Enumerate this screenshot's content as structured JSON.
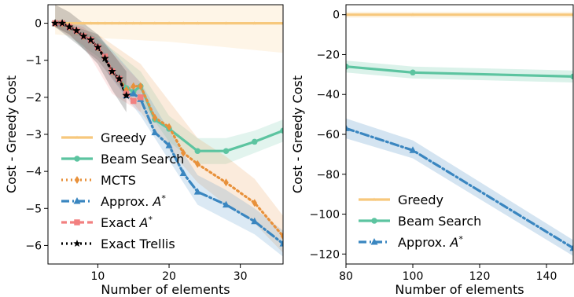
{
  "colors": {
    "greedy": "#f7c87c",
    "beam": "#5cc4a0",
    "mcts": "#e8913b",
    "approx": "#3a86c0",
    "exact": "#f28080",
    "trellis": "#000000"
  },
  "chart_data": [
    {
      "type": "line",
      "xlabel": "Number of elements",
      "ylabel": "Cost - Greedy Cost",
      "xlim": [
        3,
        36
      ],
      "ylim": [
        -6.5,
        0.5
      ],
      "xticks": [
        10,
        20,
        30
      ],
      "yticks": [
        0,
        -1,
        -2,
        -3,
        -4,
        -5,
        -6
      ],
      "grid": false,
      "legend_position": "bottom-left",
      "legend": [
        "Greedy",
        "Beam Search",
        "MCTS",
        "Approx. A*",
        "Exact A*",
        "Exact Trellis"
      ],
      "series": [
        {
          "name": "Greedy",
          "key": "greedy",
          "marker": "star",
          "dash": "solid",
          "x": [
            4,
            5,
            6,
            7,
            8,
            9,
            10,
            11,
            12,
            13,
            14,
            15,
            16,
            18,
            20,
            22,
            24,
            28,
            32,
            36
          ],
          "y": [
            0,
            0,
            0,
            0,
            0,
            0,
            0,
            0,
            0,
            0,
            0,
            0,
            0,
            0,
            0,
            0,
            0,
            0,
            0,
            0
          ],
          "band": {
            "x": [
              4,
              10,
              20,
              36
            ],
            "lower": [
              -0.3,
              -0.4,
              -0.5,
              -0.8
            ],
            "upper": [
              0.5,
              0.5,
              0.5,
              0.5
            ]
          }
        },
        {
          "name": "Beam Search",
          "key": "beam",
          "marker": "circle",
          "dash": "solid",
          "x": [
            4,
            5,
            6,
            7,
            8,
            9,
            10,
            11,
            12,
            13,
            14,
            15,
            16,
            18,
            20,
            24,
            28,
            32,
            36
          ],
          "y": [
            0,
            0,
            -0.1,
            -0.2,
            -0.35,
            -0.45,
            -0.65,
            -0.9,
            -1.3,
            -1.5,
            -1.75,
            -1.85,
            -1.7,
            -2.6,
            -2.85,
            -3.45,
            -3.45,
            -3.2,
            -2.9
          ],
          "band": {
            "x": [
              4,
              10,
              16,
              20,
              24,
              28,
              32,
              36
            ],
            "lower": [
              -0.1,
              -0.9,
              -2.1,
              -3.2,
              -3.8,
              -3.8,
              -3.5,
              -3.2
            ],
            "upper": [
              0.1,
              -0.4,
              -1.3,
              -2.5,
              -3.1,
              -3.1,
              -2.9,
              -2.6
            ]
          }
        },
        {
          "name": "MCTS",
          "key": "mcts",
          "marker": "diamond",
          "dash": "dot",
          "x": [
            4,
            5,
            6,
            7,
            8,
            9,
            10,
            11,
            12,
            13,
            14,
            15,
            16,
            18,
            20,
            22,
            24,
            28,
            32,
            36
          ],
          "y": [
            0,
            0,
            -0.1,
            -0.2,
            -0.35,
            -0.45,
            -0.65,
            -0.9,
            -1.3,
            -1.5,
            -1.8,
            -1.7,
            -1.7,
            -2.55,
            -2.8,
            -3.5,
            -3.8,
            -4.3,
            -4.85,
            -5.75
          ],
          "band": {
            "x": [
              4,
              10,
              16,
              20,
              24,
              28,
              32,
              36
            ],
            "lower": [
              -0.1,
              -1.0,
              -2.4,
              -3.4,
              -4.3,
              -4.9,
              -5.4,
              -6.2
            ],
            "upper": [
              0.1,
              -0.3,
              -1.1,
              -2.1,
              -3.1,
              -3.6,
              -4.2,
              -5.2
            ]
          }
        },
        {
          "name": "Approx. A*",
          "key": "approx",
          "marker": "triangle",
          "dash": "dashdot",
          "x": [
            4,
            5,
            6,
            7,
            8,
            9,
            10,
            11,
            12,
            13,
            14,
            15,
            16,
            18,
            20,
            22,
            24,
            28,
            32,
            36
          ],
          "y": [
            0,
            0,
            -0.1,
            -0.2,
            -0.35,
            -0.45,
            -0.65,
            -0.9,
            -1.3,
            -1.5,
            -1.95,
            -1.9,
            -2.05,
            -2.95,
            -3.3,
            -4.05,
            -4.55,
            -4.9,
            -5.35,
            -5.95
          ],
          "band": {
            "x": [
              4,
              10,
              16,
              20,
              24,
              28,
              32,
              36
            ],
            "lower": [
              -0.1,
              -1.0,
              -2.5,
              -3.7,
              -4.9,
              -5.3,
              -5.7,
              -6.3
            ],
            "upper": [
              0.1,
              -0.3,
              -1.6,
              -2.9,
              -4.1,
              -4.5,
              -5.0,
              -5.6
            ]
          }
        },
        {
          "name": "Exact A*",
          "key": "exact",
          "marker": "square",
          "dash": "dash",
          "x": [
            4,
            5,
            6,
            7,
            8,
            9,
            10,
            11,
            12,
            13,
            14,
            15,
            16
          ],
          "y": [
            0,
            0,
            -0.1,
            -0.2,
            -0.35,
            -0.45,
            -0.65,
            -0.9,
            -1.3,
            -1.5,
            -1.9,
            -2.1,
            -2.0
          ],
          "band": {
            "x": [
              4,
              8,
              12,
              16
            ],
            "lower": [
              -0.1,
              -0.6,
              -1.9,
              -2.4
            ],
            "upper": [
              0.1,
              -0.1,
              -0.8,
              -1.6
            ]
          }
        },
        {
          "name": "Exact Trellis",
          "key": "trellis",
          "marker": "star",
          "dash": "dot",
          "x": [
            4,
            5,
            6,
            7,
            8,
            9,
            10,
            11,
            12,
            13,
            14
          ],
          "y": [
            0,
            0,
            -0.1,
            -0.2,
            -0.35,
            -0.45,
            -0.65,
            -0.95,
            -1.3,
            -1.5,
            -1.95
          ],
          "band": {
            "x": [
              4,
              6,
              8,
              10,
              12,
              14
            ],
            "lower": [
              -0.1,
              -0.3,
              -0.7,
              -1.1,
              -1.8,
              -2.4
            ],
            "upper": [
              0.5,
              0.3,
              0.0,
              -0.3,
              -0.8,
              -1.3
            ]
          }
        }
      ]
    },
    {
      "type": "line",
      "xlabel": "Number of elements",
      "ylabel": "Cost - Greedy Cost",
      "xlim": [
        80,
        148
      ],
      "ylim": [
        -125,
        5
      ],
      "xticks": [
        80,
        100,
        120,
        140
      ],
      "yticks": [
        0,
        -20,
        -40,
        -60,
        -80,
        -100,
        -120
      ],
      "grid": false,
      "legend_position": "bottom-left",
      "legend": [
        "Greedy",
        "Beam Search",
        "Approx. A*"
      ],
      "series": [
        {
          "name": "Greedy",
          "key": "greedy",
          "marker": "star",
          "dash": "solid",
          "x": [
            80,
            100,
            148
          ],
          "y": [
            0,
            0,
            0
          ],
          "band": {
            "x": [
              80,
              148
            ],
            "lower": [
              -1.5,
              -1.5
            ],
            "upper": [
              1.5,
              1.5
            ]
          }
        },
        {
          "name": "Beam Search",
          "key": "beam",
          "marker": "circle",
          "dash": "solid",
          "x": [
            80,
            100,
            148
          ],
          "y": [
            -26,
            -29,
            -31
          ],
          "band": {
            "x": [
              80,
              100,
              148
            ],
            "lower": [
              -29,
              -32,
              -34
            ],
            "upper": [
              -23,
              -26,
              -28
            ]
          }
        },
        {
          "name": "Approx. A*",
          "key": "approx",
          "marker": "triangle",
          "dash": "dashdot",
          "x": [
            80,
            100,
            148
          ],
          "y": [
            -57,
            -68,
            -117
          ],
          "band": {
            "x": [
              80,
              100,
              148
            ],
            "lower": [
              -62,
              -72,
              -121
            ],
            "upper": [
              -52,
              -63,
              -113
            ]
          }
        }
      ]
    }
  ]
}
